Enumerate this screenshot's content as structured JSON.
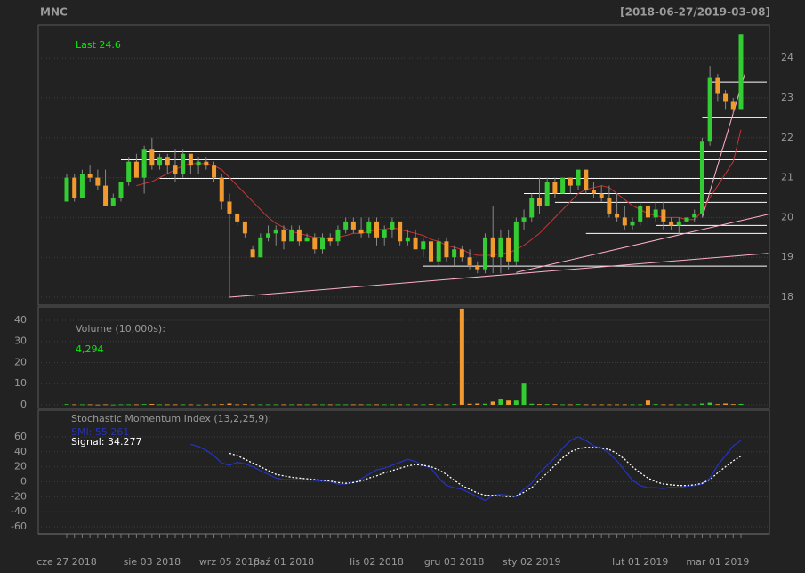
{
  "chart_data": [
    {
      "type": "candlestick",
      "title": "MNC",
      "subtitle": "[2018-06-27/2019-03-08]",
      "annotation": "Last 24.6",
      "categories": [
        "cze 27 2018",
        null,
        null,
        null,
        null,
        null,
        null,
        null,
        null,
        null,
        null,
        "sie 03 2018",
        null,
        null,
        null,
        null,
        null,
        null,
        null,
        null,
        null,
        "wrz 05 2018",
        null,
        null,
        null,
        null,
        null,
        null,
        "paź 01 2018",
        null,
        null,
        null,
        null,
        null,
        null,
        null,
        null,
        null,
        null,
        null,
        "lis 02 2018",
        null,
        null,
        null,
        null,
        null,
        null,
        null,
        null,
        null,
        "gru 03 2018",
        null,
        null,
        null,
        null,
        null,
        null,
        null,
        null,
        null,
        "sty 02 2019",
        null,
        null,
        null,
        null,
        null,
        null,
        null,
        null,
        null,
        null,
        null,
        null,
        null,
        "lut 01 2019",
        null,
        null,
        null,
        null,
        null,
        null,
        null,
        null,
        null,
        "mar 01 2019",
        null,
        null,
        null
      ],
      "open": [
        20.4,
        21.0,
        20.5,
        21.1,
        21.0,
        20.8,
        20.3,
        20.5,
        20.9,
        21.4,
        21.0,
        21.7,
        21.3,
        21.5,
        21.3,
        21.1,
        21.6,
        21.3,
        21.4,
        21.3,
        21.0,
        20.4,
        20.1,
        19.9,
        19.2,
        19.0,
        19.5,
        19.6,
        19.7,
        19.4,
        19.7,
        19.4,
        19.5,
        19.2,
        19.5,
        19.4,
        19.7,
        19.9,
        19.7,
        19.6,
        19.9,
        19.5,
        19.7,
        19.9,
        19.4,
        19.5,
        19.2,
        19.4,
        18.9,
        19.4,
        19.0,
        19.2,
        19.0,
        18.8,
        18.7,
        19.5,
        19.0,
        19.5,
        18.9,
        19.9,
        20.0,
        20.5,
        20.3,
        20.9,
        20.6,
        21.0,
        20.8,
        21.2,
        20.7,
        20.6,
        20.5,
        20.1,
        20.0,
        19.8,
        19.9,
        20.3,
        20.0,
        20.2,
        19.9,
        19.8,
        19.9,
        20.0,
        20.1,
        21.9,
        23.5,
        23.1,
        22.9,
        22.7
      ],
      "high": [
        21.1,
        21.1,
        21.2,
        21.3,
        21.2,
        21.2,
        20.6,
        20.9,
        21.5,
        21.6,
        21.8,
        22.0,
        21.6,
        21.6,
        21.7,
        21.7,
        21.6,
        21.5,
        21.5,
        21.4,
        21.1,
        20.6,
        20.1,
        19.9,
        19.3,
        19.6,
        19.8,
        19.8,
        19.8,
        19.8,
        19.8,
        19.6,
        19.6,
        19.6,
        19.6,
        19.8,
        20.0,
        20.0,
        20.0,
        20.0,
        20.0,
        19.8,
        20.0,
        19.9,
        19.7,
        19.7,
        19.5,
        19.5,
        19.5,
        19.5,
        19.3,
        19.3,
        19.2,
        18.9,
        19.6,
        20.3,
        19.7,
        19.7,
        20.0,
        20.2,
        20.6,
        21.0,
        21.0,
        21.0,
        21.0,
        21.0,
        21.2,
        21.2,
        20.9,
        20.8,
        20.8,
        20.6,
        20.3,
        20.0,
        20.4,
        20.3,
        20.4,
        20.4,
        20.0,
        20.0,
        20.0,
        20.2,
        22.0,
        23.8,
        23.6,
        23.2,
        23.0,
        24.6
      ],
      "low": [
        20.4,
        20.4,
        20.5,
        20.9,
        20.7,
        20.3,
        20.3,
        20.4,
        20.8,
        21.0,
        20.6,
        21.2,
        21.2,
        21.1,
        20.9,
        21.0,
        21.1,
        21.1,
        21.2,
        20.9,
        20.2,
        18.0,
        19.8,
        19.5,
        19.0,
        19.0,
        19.4,
        19.3,
        19.2,
        19.4,
        19.3,
        19.4,
        19.1,
        19.1,
        19.3,
        19.3,
        19.6,
        19.6,
        19.5,
        19.5,
        19.3,
        19.3,
        19.5,
        19.3,
        19.3,
        19.2,
        19.0,
        18.8,
        18.8,
        18.9,
        18.8,
        18.9,
        18.7,
        18.6,
        18.6,
        18.6,
        18.6,
        18.7,
        18.8,
        19.7,
        19.9,
        20.1,
        20.3,
        20.5,
        20.6,
        20.6,
        20.7,
        20.6,
        20.5,
        20.4,
        20.0,
        19.9,
        19.7,
        19.7,
        19.8,
        19.8,
        19.9,
        19.7,
        19.7,
        19.6,
        19.9,
        19.9,
        20.0,
        21.8,
        22.9,
        22.7,
        22.6,
        22.7
      ],
      "close": [
        21.0,
        20.5,
        21.1,
        21.0,
        20.8,
        20.3,
        20.5,
        20.9,
        21.4,
        21.0,
        21.7,
        21.3,
        21.5,
        21.3,
        21.1,
        21.6,
        21.3,
        21.4,
        21.3,
        21.0,
        20.4,
        20.1,
        19.9,
        19.6,
        19.0,
        19.5,
        19.6,
        19.7,
        19.4,
        19.7,
        19.4,
        19.5,
        19.2,
        19.5,
        19.4,
        19.7,
        19.9,
        19.7,
        19.6,
        19.9,
        19.5,
        19.7,
        19.9,
        19.4,
        19.5,
        19.2,
        19.4,
        18.9,
        19.4,
        19.0,
        19.2,
        19.0,
        18.8,
        18.7,
        19.5,
        19.0,
        19.5,
        18.9,
        19.9,
        20.0,
        20.5,
        20.3,
        20.9,
        20.6,
        21.0,
        20.8,
        21.2,
        20.7,
        20.6,
        20.5,
        20.1,
        20.0,
        19.8,
        19.9,
        20.3,
        20.0,
        20.2,
        19.9,
        19.8,
        19.9,
        20.0,
        20.1,
        21.9,
        23.5,
        23.1,
        22.9,
        22.7,
        24.6
      ],
      "up_color": "#33cc33",
      "down_color": "#f09a30",
      "sma": {
        "color": "#cc3333",
        "values": [
          null,
          null,
          null,
          null,
          null,
          null,
          null,
          null,
          null,
          20.8,
          20.85,
          20.9,
          21.0,
          21.1,
          21.2,
          21.3,
          21.35,
          21.35,
          21.35,
          21.3,
          21.2,
          21.0,
          20.8,
          20.6,
          20.4,
          20.2,
          20.0,
          19.85,
          19.75,
          19.65,
          19.6,
          19.55,
          19.5,
          19.5,
          19.45,
          19.5,
          19.55,
          19.6,
          19.6,
          19.65,
          19.7,
          19.7,
          19.75,
          19.7,
          19.65,
          19.6,
          19.55,
          19.45,
          19.4,
          19.3,
          19.25,
          19.2,
          19.1,
          19.05,
          19.05,
          19.05,
          19.1,
          19.1,
          19.2,
          19.3,
          19.45,
          19.6,
          19.8,
          20.0,
          20.2,
          20.4,
          20.6,
          20.7,
          20.75,
          20.8,
          20.75,
          20.6,
          20.45,
          20.3,
          20.2,
          20.1,
          20.05,
          20.0,
          20.0,
          20.0,
          19.95,
          19.95,
          20.15,
          20.5,
          20.8,
          21.1,
          21.4,
          22.2
        ]
      },
      "hline_color": "#ffffff",
      "hlines": [
        {
          "value": 21.65,
          "from": 10
        },
        {
          "value": 21.45,
          "from": 7
        },
        {
          "value": 20.98,
          "from": 12
        },
        {
          "value": 20.6,
          "from": 59
        },
        {
          "value": 20.38,
          "from": 63
        },
        {
          "value": 19.8,
          "from": 76
        },
        {
          "value": 19.6,
          "from": 67
        },
        {
          "value": 18.78,
          "from": 46
        },
        {
          "value": 22.5,
          "from": 82
        },
        {
          "value": 23.4,
          "from": 83
        }
      ],
      "trendline_color": "#ffb0c8",
      "trendlines": [
        [
          [
            21,
            18.0
          ],
          [
            90.5,
            19.1
          ]
        ],
        [
          [
            58,
            18.62
          ],
          [
            90.5,
            20.08
          ]
        ],
        [
          [
            82,
            20.0
          ],
          [
            87.5,
            23.6
          ]
        ]
      ],
      "ylim": [
        17.8,
        24.83
      ],
      "yticks": [
        18,
        19,
        20,
        21,
        22,
        23,
        24
      ],
      "grid": true
    },
    {
      "type": "bar",
      "title": "Volume (10,000s):",
      "annotation": "4,294",
      "values": [
        0.3,
        0.2,
        0.2,
        0.2,
        0.1,
        0.2,
        0.1,
        0.2,
        0.2,
        0.2,
        0.3,
        0.4,
        0.2,
        0.2,
        0.2,
        0.2,
        0.2,
        0.1,
        0.2,
        0.2,
        0.3,
        0.6,
        0.2,
        0.3,
        0.2,
        0.2,
        0.2,
        0.2,
        0.2,
        0.2,
        0.2,
        0.2,
        0.2,
        0.2,
        0.2,
        0.2,
        0.2,
        0.2,
        0.2,
        0.2,
        0.2,
        0.2,
        0.2,
        0.2,
        0.2,
        0.2,
        0.2,
        0.3,
        0.2,
        0.2,
        0.3,
        45.5,
        0.5,
        0.6,
        0.5,
        1.5,
        2.5,
        2.0,
        2.0,
        10.0,
        0.5,
        0.3,
        0.3,
        0.3,
        0.2,
        0.2,
        0.3,
        0.2,
        0.2,
        0.2,
        0.2,
        0.2,
        0.2,
        0.2,
        0.2,
        2.0,
        0.3,
        0.2,
        0.2,
        0.2,
        0.2,
        0.2,
        0.6,
        1.0,
        0.3,
        0.6,
        0.3,
        0.4294
      ],
      "ylim": [
        -1.7,
        46.3
      ],
      "yticks": [
        0,
        10,
        20,
        30,
        40
      ],
      "grid": true
    },
    {
      "type": "line",
      "title": "Stochastic Momentum Index (13,2,25,9):",
      "series": [
        {
          "name": "SMI: 55.261",
          "color": "#2233bb",
          "dash": false,
          "values": [
            null,
            null,
            null,
            null,
            null,
            null,
            null,
            null,
            null,
            null,
            null,
            null,
            null,
            null,
            null,
            null,
            50,
            47,
            42,
            35,
            25,
            22,
            26,
            24,
            20,
            15,
            10,
            5,
            3,
            3,
            3,
            3,
            2,
            1,
            0,
            -3,
            -3,
            -1,
            4,
            10,
            16,
            18,
            22,
            26,
            30,
            27,
            22,
            18,
            5,
            -5,
            -8,
            -10,
            -15,
            -20,
            -25,
            -18,
            -17,
            -18,
            -20,
            -10,
            -2,
            12,
            22,
            32,
            45,
            55,
            60,
            55,
            48,
            45,
            38,
            28,
            15,
            2,
            -5,
            -8,
            -8,
            -9,
            -7,
            -8,
            -6,
            -5,
            -3,
            5,
            22,
            35,
            48,
            55.261
          ]
        },
        {
          "name": "Signal: 34.277",
          "color": "#ffffff",
          "dash": true,
          "values": [
            null,
            null,
            null,
            null,
            null,
            null,
            null,
            null,
            null,
            null,
            null,
            null,
            null,
            null,
            null,
            null,
            null,
            null,
            null,
            null,
            null,
            38,
            35,
            30,
            25,
            20,
            15,
            10,
            8,
            6,
            5,
            4,
            3,
            2,
            1,
            -1,
            -2,
            -1,
            1,
            5,
            8,
            12,
            15,
            18,
            21,
            23,
            22,
            20,
            16,
            10,
            2,
            -5,
            -10,
            -15,
            -18,
            -18,
            -19,
            -20,
            -19,
            -14,
            -8,
            2,
            12,
            22,
            32,
            40,
            44,
            46,
            46,
            45,
            43,
            38,
            30,
            20,
            12,
            5,
            0,
            -3,
            -4,
            -5,
            -5,
            -4,
            -2,
            3,
            12,
            20,
            28,
            34.277
          ]
        }
      ],
      "ylim": [
        -69.5,
        95.6
      ],
      "yticks": [
        -60,
        -40,
        -20,
        0,
        20,
        40,
        60
      ],
      "grid": true
    }
  ]
}
